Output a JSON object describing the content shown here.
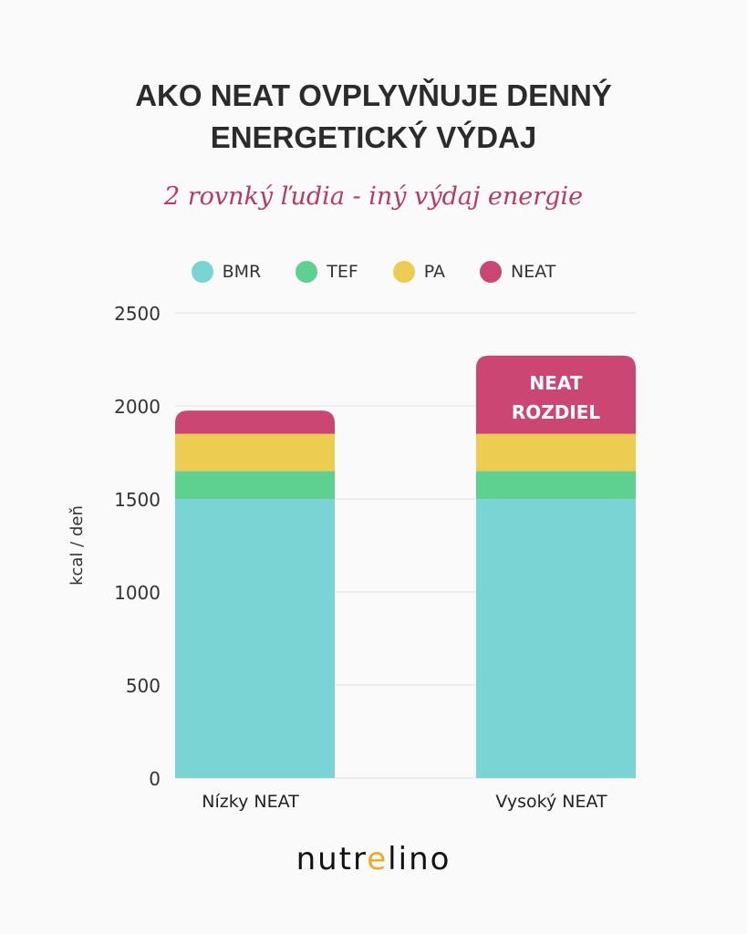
{
  "title_lines": [
    "AKO NEAT OVPLYVŇUJE DENNÝ",
    "ENERGETICKÝ VÝDAJ"
  ],
  "subtitle": "2 rovnký ľudia - iný výdaj energie",
  "logo": {
    "pre": "nutr",
    "accent": "e",
    "post": "lino"
  },
  "chart_data": {
    "type": "bar",
    "stacked": true,
    "categories": [
      "Nízky NEAT",
      "Vysoký NEAT"
    ],
    "series": [
      {
        "name": "BMR",
        "color": "#7bd4d4",
        "values": [
          1500,
          1500
        ]
      },
      {
        "name": "TEF",
        "color": "#5ed190",
        "values": [
          150,
          150
        ]
      },
      {
        "name": "PA",
        "color": "#eccd52",
        "values": [
          200,
          200
        ]
      },
      {
        "name": "NEAT",
        "color": "#cc4673",
        "values": [
          125,
          420
        ]
      }
    ],
    "ylabel": "kcal / deň",
    "ylim": [
      0,
      2500
    ],
    "yticks": [
      0,
      500,
      1000,
      1500,
      2000,
      2500
    ],
    "grid": true,
    "legend": "top",
    "annotation": {
      "category": "Vysoký NEAT",
      "series": "NEAT",
      "lines": [
        "NEAT",
        "ROZDIEL"
      ]
    }
  }
}
